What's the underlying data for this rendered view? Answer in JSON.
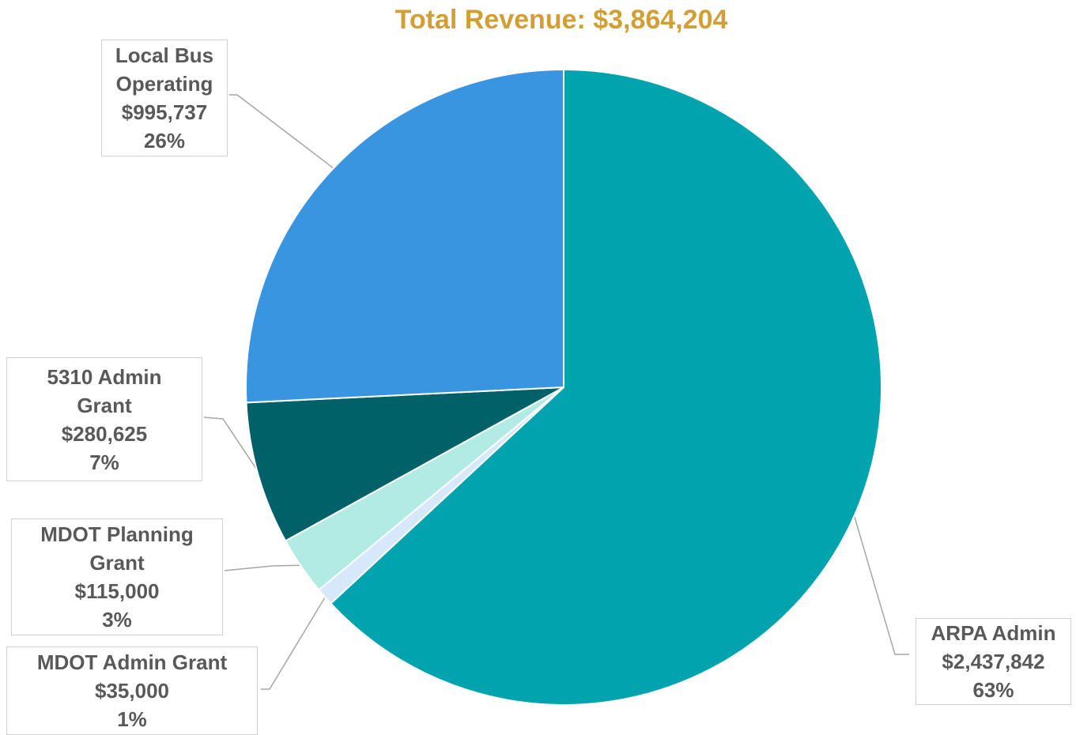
{
  "chart_data": {
    "type": "pie",
    "title": "Total Revenue: $3,864,204",
    "slices": [
      {
        "key": "arpa",
        "label_lines": [
          "ARPA Admin"
        ],
        "value_text": "$2,437,842",
        "pct_text": "63%",
        "value": 2437842,
        "color": "#00A3AE"
      },
      {
        "key": "mdot-admin",
        "label_lines": [
          "MDOT Admin Grant"
        ],
        "value_text": "$35,000",
        "pct_text": "1%",
        "value": 35000,
        "color": "#D6E8FA"
      },
      {
        "key": "mdot-planning",
        "label_lines": [
          "MDOT Planning",
          "Grant"
        ],
        "value_text": "$115,000",
        "pct_text": "3%",
        "value": 115000,
        "color": "#B2EBE3"
      },
      {
        "key": "admin-5310",
        "label_lines": [
          "5310 Admin",
          "Grant"
        ],
        "value_text": "$280,625",
        "pct_text": "7%",
        "value": 280625,
        "color": "#006168"
      },
      {
        "key": "local-bus",
        "label_lines": [
          "Local Bus",
          "Operating"
        ],
        "value_text": "$995,737",
        "pct_text": "26%",
        "value": 995737,
        "color": "#3A95E0"
      }
    ]
  }
}
